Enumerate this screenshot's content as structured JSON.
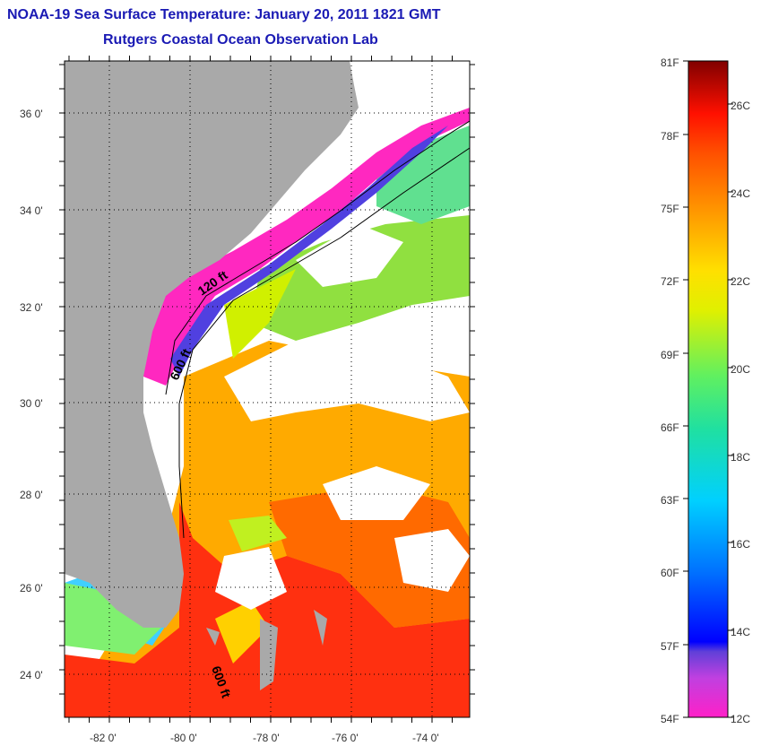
{
  "title": {
    "line1": "NOAA-19 Sea Surface Temperature:  January 20, 2011 1821 GMT",
    "line2": "Rutgers Coastal Ocean Observation Lab"
  },
  "axes": {
    "lat_labels": [
      "36 0'",
      "34 0'",
      "32 0'",
      "30 0'",
      "28 0'",
      "26 0'",
      "24 0'"
    ],
    "lon_labels": [
      "-82 0'",
      "-80 0'",
      "-78 0'",
      "-76 0'",
      "-74 0'"
    ]
  },
  "contours": {
    "label_120": "120 ft",
    "label_600a": "600 ft",
    "label_600b": "600 ft"
  },
  "colorbar": {
    "fahrenheit": [
      "81F",
      "78F",
      "75F",
      "72F",
      "69F",
      "66F",
      "63F",
      "60F",
      "57F",
      "54F"
    ],
    "celsius": [
      "26C",
      "24C",
      "22C",
      "20C",
      "18C",
      "16C",
      "14C",
      "12C"
    ]
  },
  "colors": {
    "title": "#1a1ab4",
    "land": "#a9a9a9",
    "cloud": "#ffffff"
  }
}
